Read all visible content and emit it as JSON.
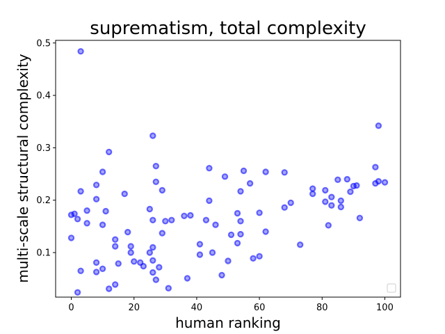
{
  "chart_data": {
    "type": "scatter",
    "title": "suprematism, total complexity",
    "xlabel": "human ranking",
    "ylabel": "multi-scale structural complexity",
    "xlim": [
      -5,
      105
    ],
    "ylim": [
      0.015,
      0.505
    ],
    "xticks": [
      0,
      20,
      40,
      60,
      80,
      100
    ],
    "yticks": [
      0.1,
      0.2,
      0.3,
      0.4,
      0.5
    ],
    "xtick_labels": [
      "0",
      "20",
      "40",
      "60",
      "80",
      "100"
    ],
    "ytick_labels": [
      "0.1",
      "0.2",
      "0.3",
      "0.4",
      "0.5"
    ],
    "grid": false,
    "legend": "lower-right",
    "marker_color": "#0000ff",
    "points": [
      {
        "x": 0,
        "y": 0.172
      },
      {
        "x": 0,
        "y": 0.128
      },
      {
        "x": 1,
        "y": 0.174
      },
      {
        "x": 2,
        "y": 0.164
      },
      {
        "x": 2,
        "y": 0.024
      },
      {
        "x": 3,
        "y": 0.484
      },
      {
        "x": 3,
        "y": 0.217
      },
      {
        "x": 3,
        "y": 0.065
      },
      {
        "x": 5,
        "y": 0.18
      },
      {
        "x": 5,
        "y": 0.156
      },
      {
        "x": 8,
        "y": 0.229
      },
      {
        "x": 8,
        "y": 0.202
      },
      {
        "x": 8,
        "y": 0.081
      },
      {
        "x": 8,
        "y": 0.063
      },
      {
        "x": 10,
        "y": 0.254
      },
      {
        "x": 10,
        "y": 0.153
      },
      {
        "x": 10,
        "y": 0.069
      },
      {
        "x": 11,
        "y": 0.179
      },
      {
        "x": 12,
        "y": 0.292
      },
      {
        "x": 12,
        "y": 0.031
      },
      {
        "x": 14,
        "y": 0.125
      },
      {
        "x": 14,
        "y": 0.112
      },
      {
        "x": 14,
        "y": 0.039
      },
      {
        "x": 15,
        "y": 0.079
      },
      {
        "x": 17,
        "y": 0.212
      },
      {
        "x": 18,
        "y": 0.139
      },
      {
        "x": 19,
        "y": 0.112
      },
      {
        "x": 19,
        "y": 0.1
      },
      {
        "x": 20,
        "y": 0.083
      },
      {
        "x": 22,
        "y": 0.081
      },
      {
        "x": 23,
        "y": 0.074
      },
      {
        "x": 25,
        "y": 0.183
      },
      {
        "x": 25,
        "y": 0.1
      },
      {
        "x": 26,
        "y": 0.323
      },
      {
        "x": 26,
        "y": 0.162
      },
      {
        "x": 26,
        "y": 0.11
      },
      {
        "x": 26,
        "y": 0.085
      },
      {
        "x": 26,
        "y": 0.062
      },
      {
        "x": 27,
        "y": 0.265
      },
      {
        "x": 27,
        "y": 0.235
      },
      {
        "x": 27,
        "y": 0.048
      },
      {
        "x": 28,
        "y": 0.072
      },
      {
        "x": 29,
        "y": 0.219
      },
      {
        "x": 29,
        "y": 0.137
      },
      {
        "x": 30,
        "y": 0.16
      },
      {
        "x": 31,
        "y": 0.032
      },
      {
        "x": 32,
        "y": 0.162
      },
      {
        "x": 36,
        "y": 0.17
      },
      {
        "x": 37,
        "y": 0.051
      },
      {
        "x": 38,
        "y": 0.171
      },
      {
        "x": 41,
        "y": 0.116
      },
      {
        "x": 41,
        "y": 0.096
      },
      {
        "x": 43,
        "y": 0.162
      },
      {
        "x": 44,
        "y": 0.261
      },
      {
        "x": 44,
        "y": 0.199
      },
      {
        "x": 45,
        "y": 0.1
      },
      {
        "x": 46,
        "y": 0.153
      },
      {
        "x": 48,
        "y": 0.057
      },
      {
        "x": 49,
        "y": 0.245
      },
      {
        "x": 50,
        "y": 0.084
      },
      {
        "x": 51,
        "y": 0.134
      },
      {
        "x": 53,
        "y": 0.175
      },
      {
        "x": 53,
        "y": 0.118
      },
      {
        "x": 54,
        "y": 0.217
      },
      {
        "x": 54,
        "y": 0.16
      },
      {
        "x": 54,
        "y": 0.135
      },
      {
        "x": 55,
        "y": 0.256
      },
      {
        "x": 57,
        "y": 0.232
      },
      {
        "x": 58,
        "y": 0.089
      },
      {
        "x": 60,
        "y": 0.176
      },
      {
        "x": 60,
        "y": 0.093
      },
      {
        "x": 62,
        "y": 0.254
      },
      {
        "x": 62,
        "y": 0.14
      },
      {
        "x": 68,
        "y": 0.253
      },
      {
        "x": 68,
        "y": 0.186
      },
      {
        "x": 70,
        "y": 0.195
      },
      {
        "x": 73,
        "y": 0.115
      },
      {
        "x": 77,
        "y": 0.222
      },
      {
        "x": 77,
        "y": 0.212
      },
      {
        "x": 81,
        "y": 0.219
      },
      {
        "x": 81,
        "y": 0.197
      },
      {
        "x": 82,
        "y": 0.152
      },
      {
        "x": 83,
        "y": 0.206
      },
      {
        "x": 83,
        "y": 0.19
      },
      {
        "x": 85,
        "y": 0.239
      },
      {
        "x": 86,
        "y": 0.199
      },
      {
        "x": 86,
        "y": 0.187
      },
      {
        "x": 88,
        "y": 0.24
      },
      {
        "x": 89,
        "y": 0.216
      },
      {
        "x": 90,
        "y": 0.227
      },
      {
        "x": 91,
        "y": 0.228
      },
      {
        "x": 92,
        "y": 0.166
      },
      {
        "x": 97,
        "y": 0.263
      },
      {
        "x": 97,
        "y": 0.232
      },
      {
        "x": 98,
        "y": 0.342
      },
      {
        "x": 98,
        "y": 0.236
      },
      {
        "x": 100,
        "y": 0.234
      }
    ]
  }
}
